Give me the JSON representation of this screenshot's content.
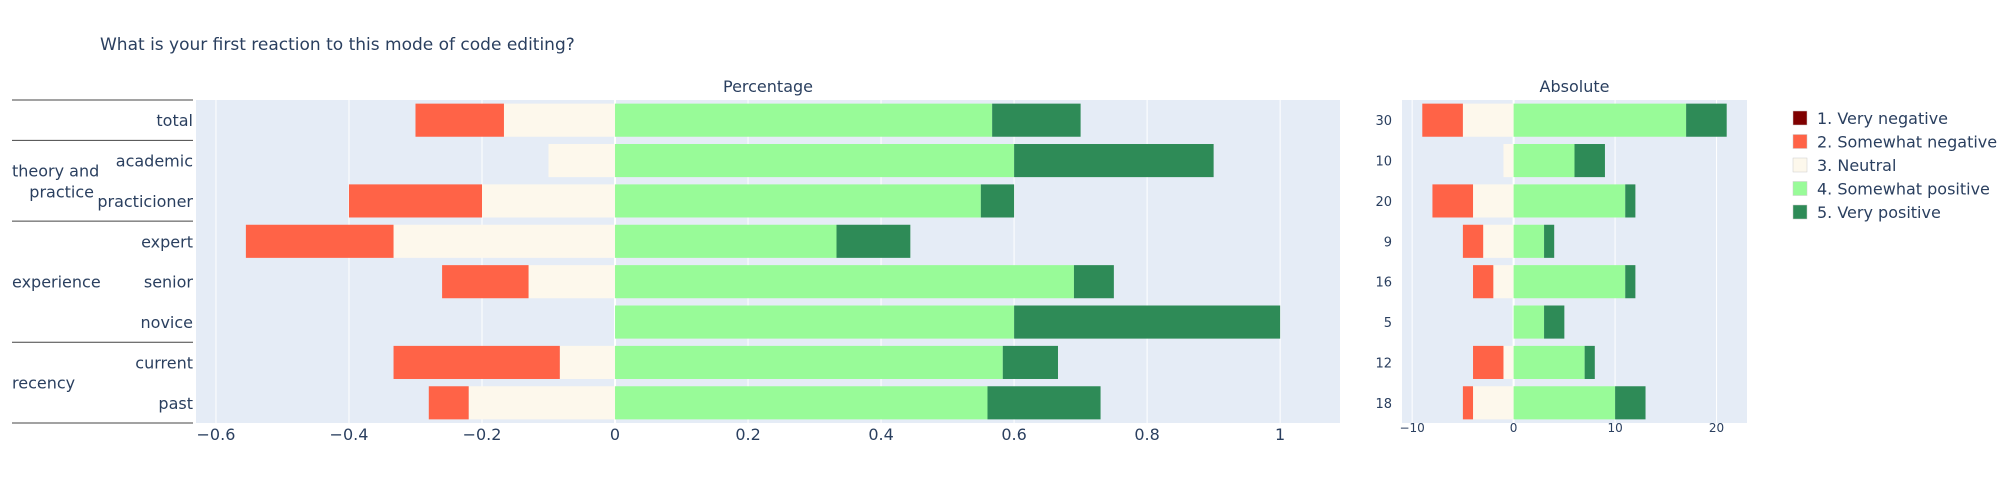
{
  "title": "What is your first reaction to this mode of code editing?",
  "chart_data": [
    {
      "type": "bar",
      "orientation": "horizontal-diverging",
      "title": "Percentage",
      "xlim": [
        -0.63,
        1.09
      ],
      "xticks": [
        -0.6,
        -0.4,
        -0.2,
        0,
        0.2,
        0.4,
        0.6,
        0.8,
        1
      ],
      "xtick_labels": [
        "−0.6",
        "−0.4",
        "−0.2",
        "0",
        "0.2",
        "0.4",
        "0.6",
        "0.8",
        "1"
      ],
      "grid": true,
      "rows": [
        {
          "label": "total",
          "neg_somewhat": -0.133,
          "neg_neutral": -0.167,
          "pos_somewhat": 0.567,
          "pos_very": 0.133
        },
        {
          "label": "academic",
          "neg_somewhat": 0,
          "neg_neutral": -0.1,
          "pos_somewhat": 0.6,
          "pos_very": 0.3
        },
        {
          "label": "practicioner",
          "neg_somewhat": -0.2,
          "neg_neutral": -0.2,
          "pos_somewhat": 0.55,
          "pos_very": 0.05
        },
        {
          "label": "expert",
          "neg_somewhat": -0.222,
          "neg_neutral": -0.333,
          "pos_somewhat": 0.333,
          "pos_very": 0.111
        },
        {
          "label": "senior",
          "neg_somewhat": -0.13,
          "neg_neutral": -0.13,
          "pos_somewhat": 0.69,
          "pos_very": 0.06
        },
        {
          "label": "novice",
          "neg_somewhat": 0,
          "neg_neutral": 0,
          "pos_somewhat": 0.6,
          "pos_very": 0.4
        },
        {
          "label": "current",
          "neg_somewhat": -0.25,
          "neg_neutral": -0.083,
          "pos_somewhat": 0.583,
          "pos_very": 0.083
        },
        {
          "label": "past",
          "neg_somewhat": -0.06,
          "neg_neutral": -0.22,
          "pos_somewhat": 0.56,
          "pos_very": 0.17
        }
      ]
    },
    {
      "type": "bar",
      "orientation": "horizontal-diverging",
      "title": "Absolute",
      "xlim": [
        -11,
        23
      ],
      "xticks": [
        -10,
        0,
        10,
        20
      ],
      "xtick_labels": [
        "−10",
        "0",
        "10",
        "20"
      ],
      "grid": true,
      "rows": [
        {
          "count": "30",
          "neg_somewhat": -4,
          "neg_neutral": -5,
          "pos_somewhat": 17,
          "pos_very": 4
        },
        {
          "count": "10",
          "neg_somewhat": 0,
          "neg_neutral": -1,
          "pos_somewhat": 6,
          "pos_very": 3
        },
        {
          "count": "20",
          "neg_somewhat": -4,
          "neg_neutral": -4,
          "pos_somewhat": 11,
          "pos_very": 1
        },
        {
          "count": "9",
          "neg_somewhat": -2,
          "neg_neutral": -3,
          "pos_somewhat": 3,
          "pos_very": 1
        },
        {
          "count": "16",
          "neg_somewhat": -2,
          "neg_neutral": -2,
          "pos_somewhat": 11,
          "pos_very": 1
        },
        {
          "count": "5",
          "neg_somewhat": 0,
          "neg_neutral": 0,
          "pos_somewhat": 3,
          "pos_very": 2
        },
        {
          "count": "12",
          "neg_somewhat": -3,
          "neg_neutral": -1,
          "pos_somewhat": 7,
          "pos_very": 1
        },
        {
          "count": "18",
          "neg_somewhat": -1,
          "neg_neutral": -4,
          "pos_somewhat": 10,
          "pos_very": 3
        }
      ]
    }
  ],
  "groups": [
    {
      "label": "",
      "rows": [
        0
      ]
    },
    {
      "label": "theory and\npractice",
      "rows": [
        1,
        2
      ]
    },
    {
      "label": "experience",
      "rows": [
        3,
        4,
        5
      ]
    },
    {
      "label": "recency",
      "rows": [
        6,
        7
      ]
    }
  ],
  "legend": {
    "placement": "right",
    "items": [
      {
        "label": "1. Very negative",
        "color": "#7f0000"
      },
      {
        "label": "2. Somewhat negative",
        "color": "#ff6347"
      },
      {
        "label": "3. Neutral",
        "color": "#fdf8ec"
      },
      {
        "label": "4. Somewhat positive",
        "color": "#98fb98"
      },
      {
        "label": "5. Very positive",
        "color": "#2e8b57"
      }
    ]
  },
  "colors": {
    "plot_bg": "#e5ecf6",
    "grid": "#ffffff",
    "text": "#2a3f5f"
  }
}
